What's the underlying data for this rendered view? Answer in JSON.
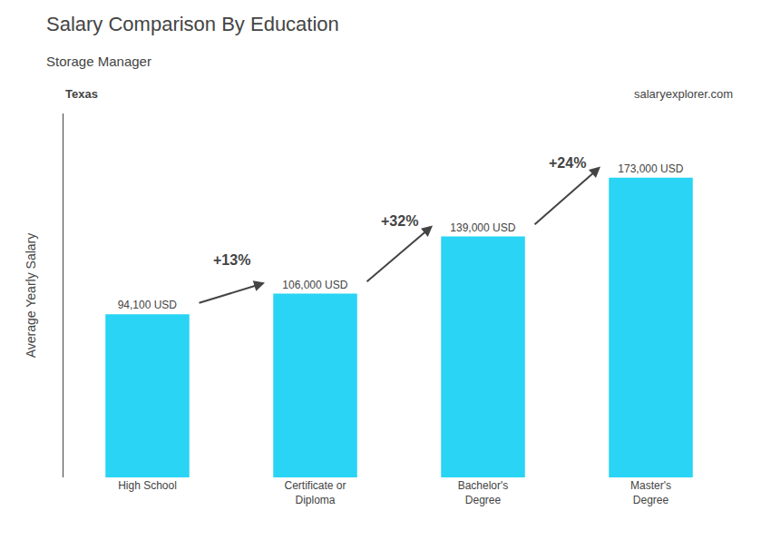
{
  "chart_data": {
    "type": "bar",
    "title": "Salary Comparison By Education",
    "subtitle": "Storage Manager",
    "ylabel": "Average Yearly Salary",
    "categories": [
      "High School",
      "Certificate or\nDiploma",
      "Bachelor's\nDegree",
      "Master's\nDegree"
    ],
    "values": [
      94100,
      106000,
      139000,
      173000
    ],
    "value_labels": [
      "94,100 USD",
      "106,000 USD",
      "139,000 USD",
      "173,000 USD"
    ],
    "data_labels": true,
    "color": "#29d4f5",
    "ylim": [
      0,
      210000
    ],
    "grid": false,
    "tick_labels": "x",
    "annotations": [
      {
        "text": "Texas"
      },
      {
        "text": "salaryexplorer.com"
      },
      {
        "text": "+13%",
        "from": "High School",
        "to": "Certificate or\nDiploma"
      },
      {
        "text": "+32%",
        "from": "Certificate or\nDiploma",
        "to": "Bachelor's\nDegree"
      },
      {
        "text": "+24%",
        "from": "Bachelor's\nDegree",
        "to": "Master's\nDegree"
      }
    ]
  }
}
